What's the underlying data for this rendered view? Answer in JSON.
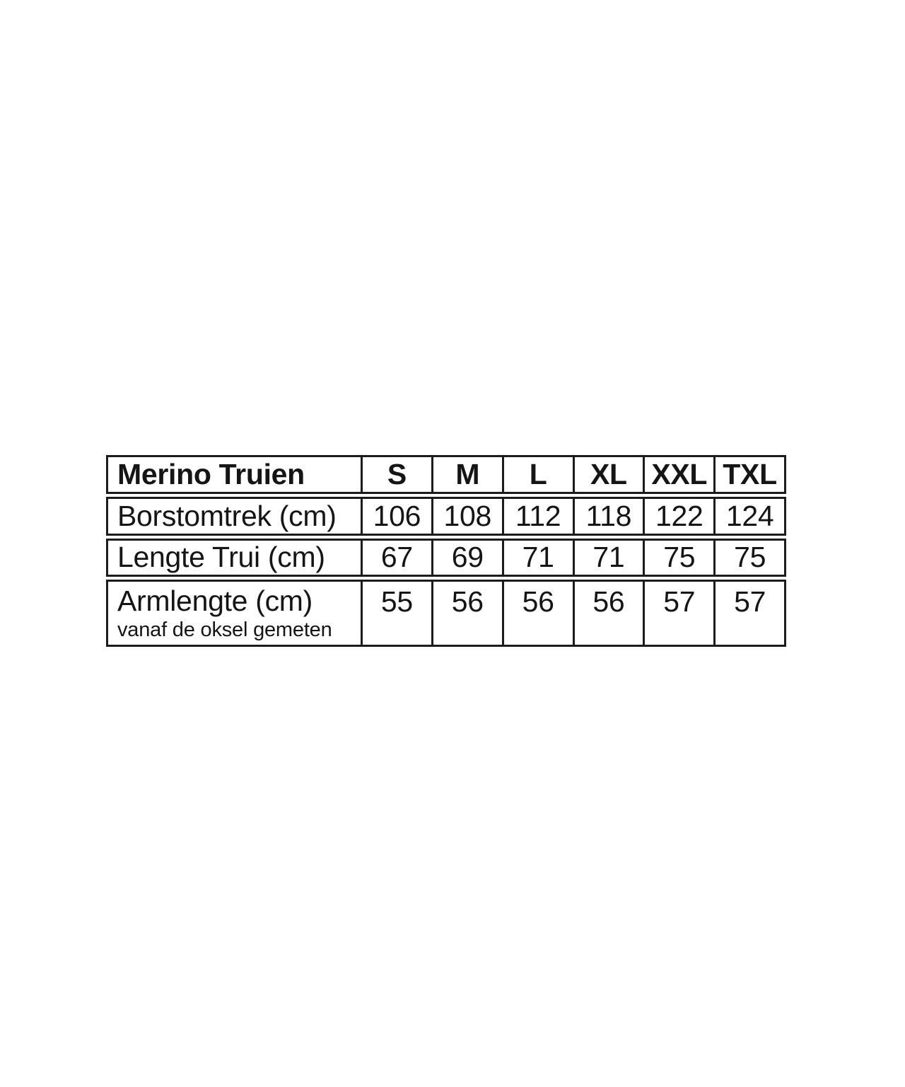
{
  "page": {
    "background_color": "#ffffff",
    "border_color": "#1c1c1c",
    "text_color": "#151515"
  },
  "table": {
    "title": "Merino Truien",
    "columns": [
      "S",
      "M",
      "L",
      "XL",
      "XXL",
      "TXL"
    ],
    "rows": [
      {
        "label": "Borstomtrek (cm)",
        "values": [
          "106",
          "108",
          "112",
          "118",
          "122",
          "124"
        ]
      },
      {
        "label": "Lengte Trui (cm)",
        "values": [
          "67",
          "69",
          "71",
          "71",
          "75",
          "75"
        ]
      },
      {
        "label": "Armlengte (cm)",
        "sublabel": "vanaf de oksel gemeten",
        "values": [
          "55",
          "56",
          "56",
          "56",
          "57",
          "57"
        ]
      }
    ]
  },
  "chart_data": {
    "type": "table",
    "title": "Merino Truien",
    "columns": [
      "Merino Truien",
      "S",
      "M",
      "L",
      "XL",
      "XXL",
      "TXL"
    ],
    "rows": [
      {
        "label": "Borstomtrek (cm)",
        "values": [
          106,
          108,
          112,
          118,
          122,
          124
        ]
      },
      {
        "label": "Lengte Trui (cm)",
        "values": [
          67,
          69,
          71,
          71,
          75,
          75
        ]
      },
      {
        "label": "Armlengte (cm), vanaf de oksel gemeten",
        "values": [
          55,
          56,
          56,
          56,
          57,
          57
        ]
      }
    ],
    "layout": "grid table, black 3px borders, small white gaps between rows, header row and size letters bold, first column left-aligned, values centered"
  }
}
